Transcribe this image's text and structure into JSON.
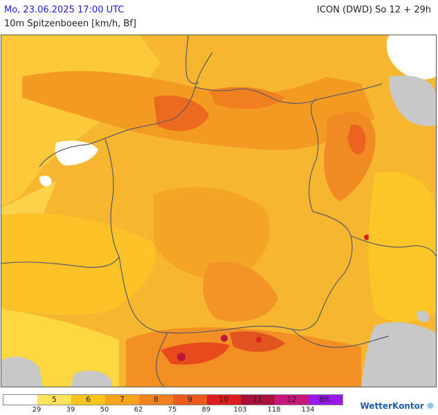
{
  "header": {
    "date_text": "Mo, 23.06.2025 17:00 UTC",
    "model_text": "ICON (DWD) So 12 + 29h",
    "parameter_text": "10m Spitzenboeen [km/h, Bf]"
  },
  "legend": {
    "cells": [
      {
        "label": "",
        "color": "#ffffff"
      },
      {
        "label": "5",
        "color": "#fde35a"
      },
      {
        "label": "6",
        "color": "#fcc51d"
      },
      {
        "label": "7",
        "color": "#f8a51b"
      },
      {
        "label": "8",
        "color": "#f2821e"
      },
      {
        "label": "9",
        "color": "#ec5a1e"
      },
      {
        "label": "10",
        "color": "#dd1e1e"
      },
      {
        "label": "11",
        "color": "#a8123a"
      },
      {
        "label": "12",
        "color": "#c8167a"
      },
      {
        "label": "Bft.",
        "color": "#9a18ee"
      }
    ],
    "ticks": [
      "29",
      "39",
      "50",
      "62",
      "75",
      "89",
      "103",
      "118",
      "134"
    ]
  },
  "brand": {
    "name": "WetterKontor",
    "mark_icon": "wind-swirl-icon"
  }
}
